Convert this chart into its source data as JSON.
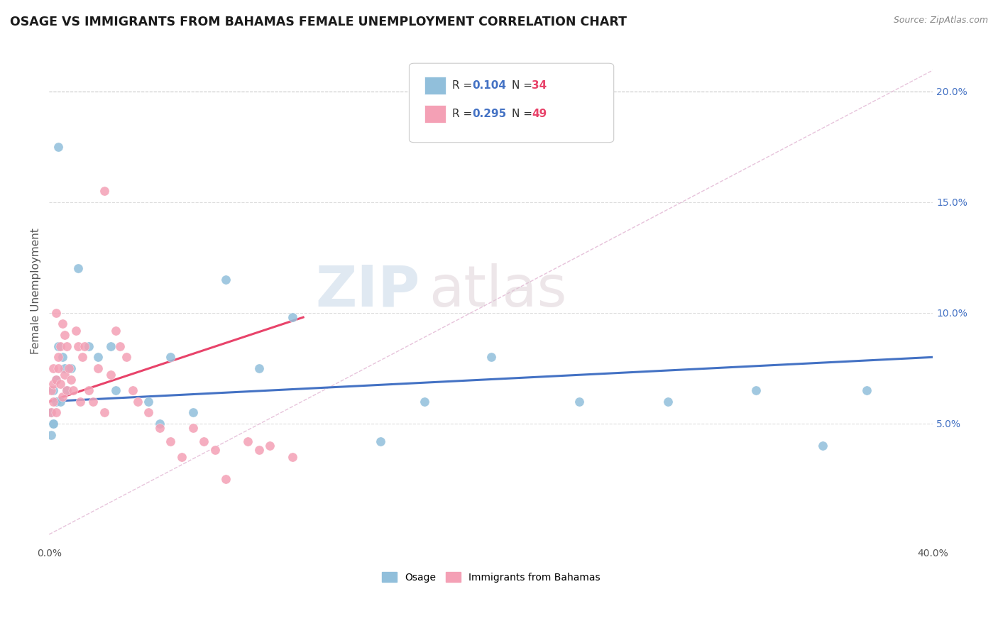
{
  "title": "OSAGE VS IMMIGRANTS FROM BAHAMAS FEMALE UNEMPLOYMENT CORRELATION CHART",
  "source": "Source: ZipAtlas.com",
  "ylabel": "Female Unemployment",
  "xlim": [
    0,
    0.4
  ],
  "ylim": [
    -0.005,
    0.225
  ],
  "osage_color": "#91BFDB",
  "bahamas_color": "#F4A0B5",
  "osage_line_color": "#4472C4",
  "bahamas_line_color": "#E8436A",
  "diagonal_color": "#CCBBCC",
  "background_color": "#FFFFFF",
  "watermark_zip": "ZIP",
  "watermark_atlas": "atlas",
  "osage_x": [
    0.004,
    0.002,
    0.003,
    0.001,
    0.002,
    0.003,
    0.005,
    0.007,
    0.006,
    0.004,
    0.008,
    0.01,
    0.013,
    0.018,
    0.022,
    0.028,
    0.03,
    0.045,
    0.05,
    0.055,
    0.065,
    0.08,
    0.095,
    0.11,
    0.15,
    0.17,
    0.2,
    0.24,
    0.28,
    0.32,
    0.35,
    0.37,
    0.001,
    0.002
  ],
  "osage_y": [
    0.175,
    0.065,
    0.06,
    0.055,
    0.05,
    0.07,
    0.06,
    0.075,
    0.08,
    0.085,
    0.065,
    0.075,
    0.12,
    0.085,
    0.08,
    0.085,
    0.065,
    0.06,
    0.05,
    0.08,
    0.055,
    0.115,
    0.075,
    0.098,
    0.042,
    0.06,
    0.08,
    0.06,
    0.06,
    0.065,
    0.04,
    0.065,
    0.045,
    0.05
  ],
  "bahamas_x": [
    0.001,
    0.001,
    0.002,
    0.002,
    0.002,
    0.003,
    0.003,
    0.003,
    0.004,
    0.004,
    0.005,
    0.005,
    0.006,
    0.006,
    0.007,
    0.007,
    0.008,
    0.008,
    0.009,
    0.01,
    0.011,
    0.012,
    0.013,
    0.014,
    0.015,
    0.016,
    0.018,
    0.02,
    0.022,
    0.025,
    0.025,
    0.028,
    0.03,
    0.032,
    0.035,
    0.038,
    0.04,
    0.045,
    0.05,
    0.055,
    0.06,
    0.065,
    0.07,
    0.075,
    0.08,
    0.09,
    0.095,
    0.1,
    0.11
  ],
  "bahamas_y": [
    0.065,
    0.055,
    0.068,
    0.075,
    0.06,
    0.07,
    0.1,
    0.055,
    0.08,
    0.075,
    0.085,
    0.068,
    0.062,
    0.095,
    0.072,
    0.09,
    0.085,
    0.065,
    0.075,
    0.07,
    0.065,
    0.092,
    0.085,
    0.06,
    0.08,
    0.085,
    0.065,
    0.06,
    0.075,
    0.055,
    0.155,
    0.072,
    0.092,
    0.085,
    0.08,
    0.065,
    0.06,
    0.055,
    0.048,
    0.042,
    0.035,
    0.048,
    0.042,
    0.038,
    0.025,
    0.042,
    0.038,
    0.04,
    0.035
  ],
  "osage_trend_x": [
    0.0,
    0.4
  ],
  "osage_trend_y": [
    0.06,
    0.08
  ],
  "bahamas_trend_x": [
    0.0,
    0.115
  ],
  "bahamas_trend_y": [
    0.06,
    0.098
  ]
}
